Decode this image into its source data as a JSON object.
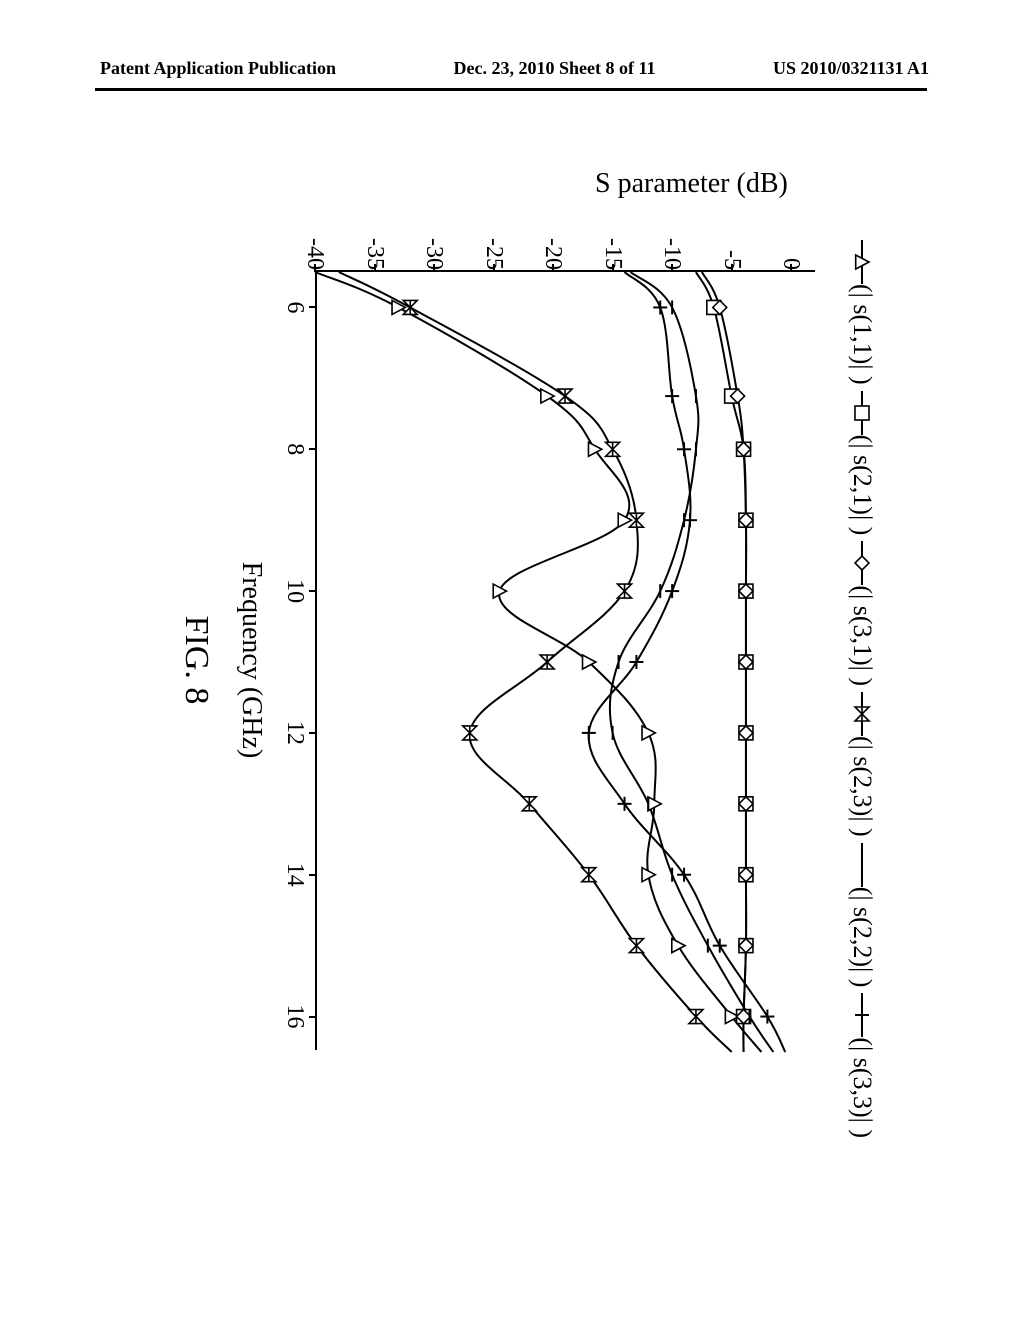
{
  "header": {
    "left": "Patent Application Publication",
    "center": "Dec. 23, 2010  Sheet 8 of 11",
    "right": "US 2010/0321131 A1"
  },
  "figure": {
    "caption": "FIG. 8",
    "xlabel": "Frequency (GHz)",
    "ylabel": "S parameter (dB)",
    "xlim": [
      5.5,
      16.5
    ],
    "ylim": [
      -40,
      2
    ],
    "xticks": [
      6,
      8,
      10,
      12,
      14,
      16
    ],
    "yticks": [
      0,
      -5,
      -10,
      -15,
      -20,
      -25,
      -30,
      -35,
      -40
    ],
    "background_color": "#ffffff",
    "axis_color": "#000000",
    "line_color": "#000000",
    "line_width": 2,
    "marker_size": 14,
    "legend": [
      {
        "label": "(| s(1,1)| )",
        "marker": "triangle"
      },
      {
        "label": "(| s(2,1)| )",
        "marker": "square"
      },
      {
        "label": "(| s(3,1)| )",
        "marker": "diamond"
      },
      {
        "label": "(| s(2,3)| )",
        "marker": "x-star"
      },
      {
        "label": "(| s(2,2)| )",
        "marker": "dash"
      },
      {
        "label": "(| s(3,3)| )",
        "marker": "plus"
      }
    ],
    "x_samples": [
      5.5,
      6,
      7.25,
      8,
      9,
      10,
      11,
      12,
      13,
      14,
      15,
      16,
      16.5
    ],
    "series": {
      "s11": [
        -40,
        -33,
        -20.5,
        -16.5,
        -14,
        -24.5,
        -17,
        -12,
        -11.5,
        -12,
        -9.5,
        -5,
        -2.5
      ],
      "s21": [
        -8,
        -6.5,
        -5,
        -4,
        -3.8,
        -3.8,
        -3.8,
        -3.8,
        -3.8,
        -3.8,
        -3.8,
        -4,
        -4
      ],
      "s31": [
        -7.5,
        -6,
        -4.5,
        -4,
        -3.8,
        -3.8,
        -3.8,
        -3.8,
        -3.8,
        -3.8,
        -3.8,
        -4,
        -4
      ],
      "s23": [
        -38,
        -32,
        -19,
        -15,
        -13,
        -14,
        -20.5,
        -27,
        -22,
        -17,
        -13,
        -8,
        -5
      ],
      "s22": [
        -13.5,
        -10,
        -8,
        -8,
        -9,
        -11,
        -14.5,
        -15,
        -12,
        -10,
        -7,
        -3.5,
        -1.5
      ],
      "s33": [
        -14,
        -11,
        -10,
        -9,
        -8.5,
        -10,
        -13,
        -17,
        -14,
        -9,
        -6,
        -2,
        -0.5
      ]
    },
    "marker_x": [
      6,
      7.25,
      8,
      9,
      10,
      11,
      12,
      13,
      14,
      15,
      16
    ]
  }
}
